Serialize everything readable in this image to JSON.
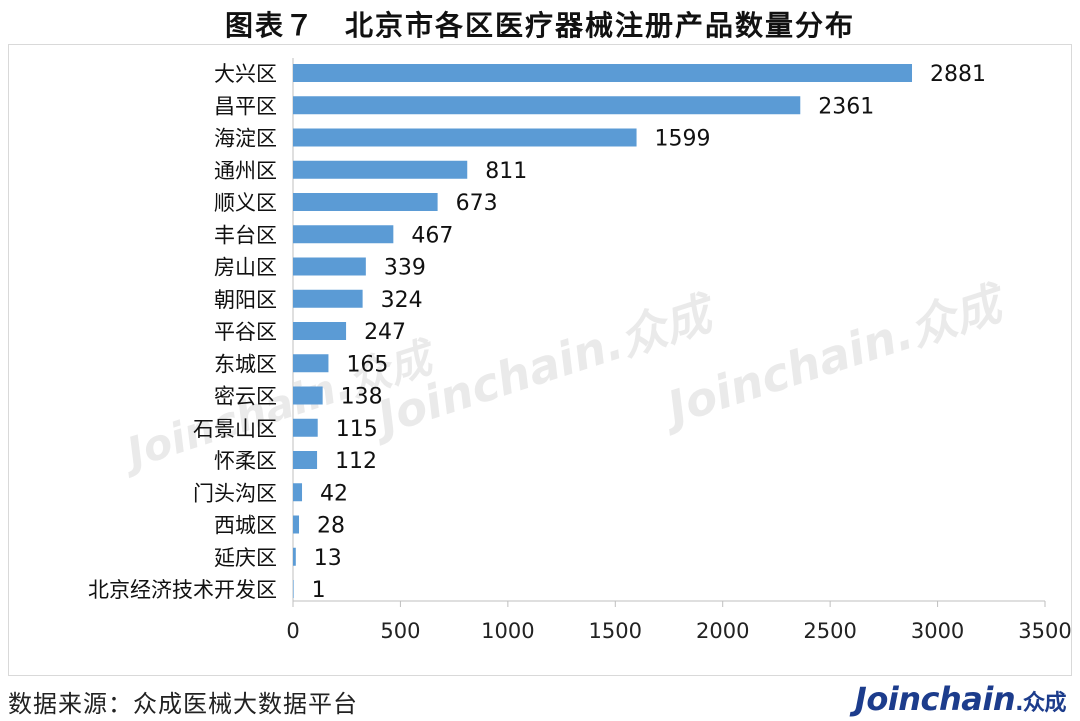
{
  "title": "图表７　北京市各区医疗器械注册产品数量分布",
  "footer": {
    "source": "数据来源：众成医械大数据平台",
    "brand_main": "Joinchain",
    "brand_suffix": ".众成"
  },
  "watermark_text": "Joinchain.众成",
  "colors": {
    "bar": "#5b9bd5",
    "axis": "#bfbfbf",
    "brand": "#1c3c8c"
  },
  "chart_data": {
    "type": "bar",
    "orientation": "horizontal",
    "categories": [
      "大兴区",
      "昌平区",
      "海淀区",
      "通州区",
      "顺义区",
      "丰台区",
      "房山区",
      "朝阳区",
      "平谷区",
      "东城区",
      "密云区",
      "石景山区",
      "怀柔区",
      "门头沟区",
      "西城区",
      "延庆区",
      "北京经济技术开发区"
    ],
    "values": [
      2881,
      2361,
      1599,
      811,
      673,
      467,
      339,
      324,
      247,
      165,
      138,
      115,
      112,
      42,
      28,
      13,
      1
    ],
    "xlim": [
      0,
      3500
    ],
    "xticks": [
      0,
      500,
      1000,
      1500,
      2000,
      2500,
      3000,
      3500
    ],
    "grid": false,
    "legend": "none",
    "data_labels": true
  }
}
